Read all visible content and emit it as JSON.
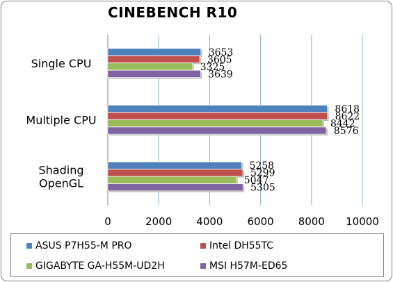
{
  "chart_data": {
    "type": "bar",
    "orientation": "horizontal",
    "title": "CINEBENCH R10",
    "categories": [
      "Single CPU",
      "Multiple CPU",
      "Shading OpenGL"
    ],
    "category_lines": [
      [
        "Single CPU"
      ],
      [
        "Multiple CPU"
      ],
      [
        "Shading",
        "OpenGL"
      ]
    ],
    "series": [
      {
        "name": "ASUS P7H55-M PRO",
        "color": "#4f81bd",
        "values": [
          3653,
          8618,
          5258
        ]
      },
      {
        "name": "Intel DH55TC",
        "color": "#c0504d",
        "values": [
          3605,
          8622,
          5299
        ]
      },
      {
        "name": "GIGABYTE GA-H55M-UD2H",
        "color": "#9bbb59",
        "values": [
          3325,
          8442,
          5047
        ]
      },
      {
        "name": "MSI H57M-ED65",
        "color": "#8064a2",
        "values": [
          3639,
          8576,
          5305
        ]
      }
    ],
    "xlim": [
      0,
      10000
    ],
    "x_ticks": [
      "0",
      "2000",
      "4000",
      "6000",
      "8000",
      "10000"
    ],
    "grid": true,
    "legend_position": "bottom"
  }
}
